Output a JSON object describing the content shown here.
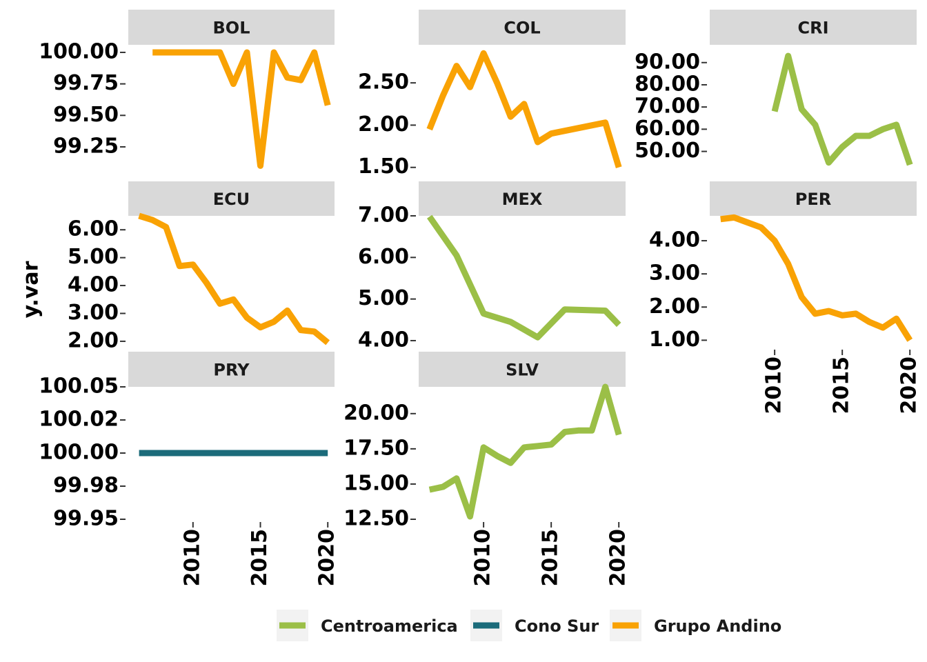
{
  "chart_data": {
    "type": "line",
    "ylabel": "y.var",
    "xlabel": "",
    "facet_columns": 3,
    "colors": {
      "Centroamerica": "#9bbf47",
      "Cono Sur": "#1b6b7a",
      "Grupo Andino": "#f9a204"
    },
    "legend": {
      "position": "bottom",
      "entries": [
        "Centroamerica",
        "Cono Sur",
        "Grupo Andino"
      ]
    },
    "x_ticks": [
      2010,
      2015,
      2020
    ],
    "panels": [
      {
        "name": "BOL",
        "group": "Grupo Andino",
        "ylim": [
          99.02,
          100.06
        ],
        "y_ticks": [
          99.25,
          99.5,
          99.75,
          100.0
        ],
        "y_tick_labels": [
          "99.25",
          "99.50",
          "99.75",
          "100.00"
        ],
        "show_x_ticks": false,
        "x": [
          2007,
          2008,
          2009,
          2010,
          2011,
          2012,
          2013,
          2014,
          2015,
          2016,
          2017,
          2018,
          2019,
          2020
        ],
        "y": [
          100.0,
          100.0,
          100.0,
          100.0,
          100.0,
          100.0,
          99.75,
          100.0,
          99.1,
          100.0,
          99.8,
          99.78,
          100.0,
          99.58
        ]
      },
      {
        "name": "COL",
        "group": "Grupo Andino",
        "ylim": [
          1.4,
          2.95
        ],
        "y_ticks": [
          1.5,
          2.0,
          2.5
        ],
        "y_tick_labels": [
          "1.50",
          "2.00",
          "2.50"
        ],
        "show_x_ticks": false,
        "x": [
          2006,
          2007,
          2008,
          2009,
          2010,
          2011,
          2012,
          2013,
          2014,
          2015,
          2019,
          2020
        ],
        "y": [
          1.95,
          2.35,
          2.7,
          2.45,
          2.85,
          2.5,
          2.1,
          2.25,
          1.8,
          1.9,
          2.03,
          1.5
        ]
      },
      {
        "name": "CRI",
        "group": "Centroamerica",
        "ylim": [
          39,
          98
        ],
        "y_ticks": [
          50,
          60,
          70,
          80,
          90
        ],
        "y_tick_labels": [
          "50.00",
          "60.00",
          "70.00",
          "80.00",
          "90.00"
        ],
        "show_x_ticks": false,
        "x": [
          2010,
          2011,
          2012,
          2013,
          2014,
          2015,
          2016,
          2017,
          2018,
          2019,
          2020
        ],
        "y": [
          68,
          93,
          69,
          62,
          45,
          52,
          57,
          57,
          60,
          62,
          44
        ]
      },
      {
        "name": "ECU",
        "group": "Grupo Andino",
        "ylim": [
          1.8,
          6.5
        ],
        "y_ticks": [
          2,
          3,
          4,
          5,
          6
        ],
        "y_tick_labels": [
          "2.00",
          "3.00",
          "4.00",
          "5.00",
          "6.00"
        ],
        "show_x_ticks": false,
        "x": [
          2006,
          2007,
          2008,
          2009,
          2010,
          2011,
          2012,
          2013,
          2014,
          2015,
          2016,
          2017,
          2018,
          2019,
          2020
        ],
        "y": [
          6.5,
          6.35,
          6.1,
          4.7,
          4.75,
          4.1,
          3.35,
          3.5,
          2.85,
          2.5,
          2.7,
          3.1,
          2.4,
          2.35,
          1.95
        ]
      },
      {
        "name": "MEX",
        "group": "Centroamerica",
        "ylim": [
          3.85,
          7.0
        ],
        "y_ticks": [
          4,
          5,
          6,
          7
        ],
        "y_tick_labels": [
          "4.00",
          "5.00",
          "6.00",
          "7.00"
        ],
        "show_x_ticks": false,
        "x": [
          2006,
          2008,
          2010,
          2012,
          2014,
          2016,
          2019,
          2020
        ],
        "y": [
          6.98,
          6.05,
          4.65,
          4.45,
          4.08,
          4.75,
          4.72,
          4.38
        ]
      },
      {
        "name": "PER",
        "group": "Grupo Andino",
        "ylim": [
          0.8,
          4.75
        ],
        "y_ticks": [
          1,
          2,
          3,
          4
        ],
        "y_tick_labels": [
          "1.00",
          "2.00",
          "3.00",
          "4.00"
        ],
        "show_x_ticks": true,
        "x": [
          2006,
          2007,
          2008,
          2009,
          2010,
          2011,
          2012,
          2013,
          2014,
          2015,
          2016,
          2017,
          2018,
          2019,
          2020
        ],
        "y": [
          4.65,
          4.7,
          4.55,
          4.4,
          4.0,
          3.3,
          2.3,
          1.8,
          1.88,
          1.75,
          1.8,
          1.55,
          1.38,
          1.65,
          1.0
        ]
      },
      {
        "name": "PRY",
        "group": "Cono Sur",
        "ylim": [
          99.95,
          100.05
        ],
        "y_ticks": [
          99.95,
          99.975,
          100.0,
          100.025,
          100.05
        ],
        "y_tick_labels": [
          "99.95",
          "99.98",
          "100.00",
          "100.02",
          "100.05"
        ],
        "show_x_ticks": true,
        "x": [
          2006,
          2020
        ],
        "y": [
          100.0,
          100.0
        ]
      },
      {
        "name": "SLV",
        "group": "Centroamerica",
        "ylim": [
          12.5,
          21.9
        ],
        "y_ticks": [
          12.5,
          15,
          17.5,
          20
        ],
        "y_tick_labels": [
          "12.50",
          "15.00",
          "17.50",
          "20.00"
        ],
        "show_x_ticks": true,
        "x": [
          2006,
          2007,
          2008,
          2009,
          2010,
          2011,
          2012,
          2013,
          2014,
          2015,
          2016,
          2017,
          2018,
          2019,
          2020
        ],
        "y": [
          14.6,
          14.8,
          15.4,
          12.7,
          17.6,
          17.0,
          16.5,
          17.6,
          17.7,
          17.8,
          18.7,
          18.8,
          18.8,
          21.9,
          18.5
        ]
      }
    ]
  }
}
